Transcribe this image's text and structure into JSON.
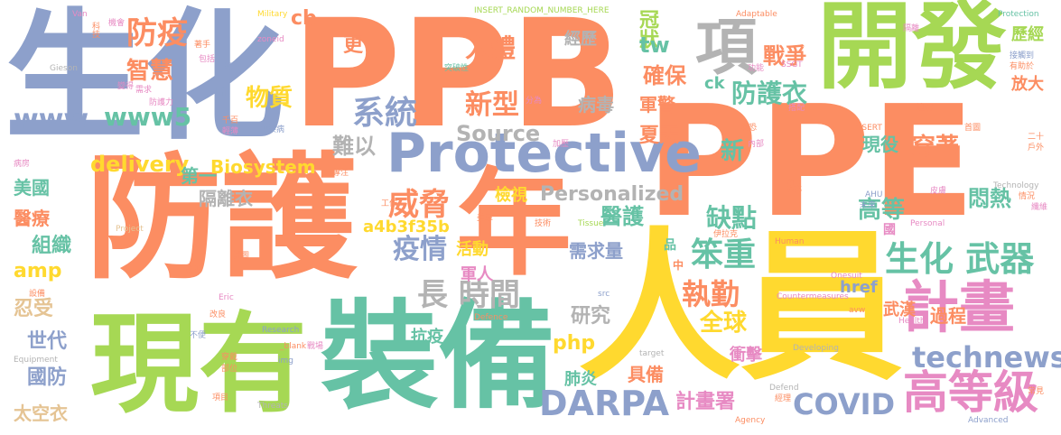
{
  "cloud": {
    "colors": {
      "salmon": "#fc8d62",
      "blue": "#8da0cb",
      "green": "#a6d854",
      "yellow": "#ffd92f",
      "teal": "#66c2a5",
      "pink": "#e78ac3",
      "tan": "#e5c494",
      "gray": "#b3b3b3"
    },
    "words": [
      {
        "text": "PPE",
        "color": "salmon"
      },
      {
        "text": "PPB",
        "color": "salmon"
      },
      {
        "text": "防護",
        "color": "salmon"
      },
      {
        "text": "人員",
        "color": "yellow"
      },
      {
        "text": "生化",
        "color": "blue"
      },
      {
        "text": "年",
        "color": "salmon"
      },
      {
        "text": "裝備",
        "color": "teal"
      },
      {
        "text": "現有",
        "color": "green"
      },
      {
        "text": "開發",
        "color": "green"
      },
      {
        "text": "Protective",
        "color": "blue"
      },
      {
        "text": "計畫",
        "color": "pink"
      },
      {
        "text": "高等級",
        "color": "pink"
      },
      {
        "text": "項",
        "color": "gray"
      },
      {
        "text": "生化 武器",
        "color": "teal"
      },
      {
        "text": "長 時間",
        "color": "gray"
      },
      {
        "text": "系統",
        "color": "blue"
      },
      {
        "text": "防疫",
        "color": "salmon"
      },
      {
        "text": "www5",
        "color": "teal"
      },
      {
        "text": "www",
        "color": "blue"
      },
      {
        "text": "DARPA",
        "color": "blue"
      },
      {
        "text": "technews",
        "color": "blue"
      },
      {
        "text": "COVID",
        "color": "blue"
      },
      {
        "text": "防護衣",
        "color": "teal"
      },
      {
        "text": "笨重",
        "color": "teal"
      },
      {
        "text": "執勤",
        "color": "salmon"
      },
      {
        "text": "全球",
        "color": "yellow"
      },
      {
        "text": "威脅",
        "color": "salmon"
      },
      {
        "text": "疫情",
        "color": "blue"
      },
      {
        "text": "新型",
        "color": "salmon"
      },
      {
        "text": "人體",
        "color": "salmon"
      },
      {
        "text": "病毒",
        "color": "gray"
      },
      {
        "text": "Source",
        "color": "gray"
      },
      {
        "text": "Personalized",
        "color": "gray"
      },
      {
        "text": "delivery",
        "color": "yellow"
      },
      {
        "text": "Biosystem",
        "color": "yellow"
      },
      {
        "text": "智慧",
        "color": "salmon"
      },
      {
        "text": "物質",
        "color": "yellow"
      },
      {
        "text": "戰爭",
        "color": "salmon"
      },
      {
        "text": "確保",
        "color": "salmon"
      },
      {
        "text": "冠狀",
        "color": "green"
      },
      {
        "text": "經歷",
        "color": "gray"
      },
      {
        "text": "歷經",
        "color": "green"
      },
      {
        "text": "醫護",
        "color": "teal"
      },
      {
        "text": "缺點",
        "color": "teal"
      },
      {
        "text": "高等",
        "color": "teal"
      },
      {
        "text": "穿著",
        "color": "salmon"
      },
      {
        "text": "悶熱",
        "color": "teal"
      },
      {
        "text": "現役",
        "color": "teal"
      },
      {
        "text": "夏天",
        "color": "salmon"
      },
      {
        "text": "軍警",
        "color": "salmon"
      },
      {
        "text": "難以",
        "color": "gray"
      },
      {
        "text": "第一",
        "color": "teal"
      },
      {
        "text": "隔離衣",
        "color": "gray"
      },
      {
        "text": "美國",
        "color": "teal"
      },
      {
        "text": "醫療",
        "color": "salmon"
      },
      {
        "text": "組織",
        "color": "teal"
      },
      {
        "text": "amp",
        "color": "yellow"
      },
      {
        "text": "忍受",
        "color": "tan"
      },
      {
        "text": "世代",
        "color": "blue"
      },
      {
        "text": "國防",
        "color": "blue"
      },
      {
        "text": "太空衣",
        "color": "tan"
      },
      {
        "text": "a4b3f35b",
        "color": "yellow"
      },
      {
        "text": "活動",
        "color": "yellow"
      },
      {
        "text": "需求量",
        "color": "blue"
      },
      {
        "text": "軍人",
        "color": "pink"
      },
      {
        "text": "抗疫",
        "color": "teal"
      },
      {
        "text": "研究",
        "color": "gray"
      },
      {
        "text": "php",
        "color": "yellow"
      },
      {
        "text": "肺炎",
        "color": "teal"
      },
      {
        "text": "具備",
        "color": "salmon"
      },
      {
        "text": "計畫署",
        "color": "pink"
      },
      {
        "text": "tw",
        "color": "teal"
      },
      {
        "text": "cb",
        "color": "salmon"
      },
      {
        "text": "更",
        "color": "salmon"
      },
      {
        "text": "ck",
        "color": "teal"
      },
      {
        "text": "n",
        "color": "blue"
      },
      {
        "text": "新",
        "color": "teal"
      },
      {
        "text": "href",
        "color": "blue"
      },
      {
        "text": "過程",
        "color": "salmon"
      },
      {
        "text": "武漢",
        "color": "salmon"
      },
      {
        "text": "衝擊",
        "color": "pink"
      },
      {
        "text": "放大",
        "color": "salmon"
      },
      {
        "text": "檢視",
        "color": "yellow"
      },
      {
        "text": "INSERT_RANDOM_NUMBER_HERE",
        "color": "green"
      },
      {
        "text": "Military",
        "color": "yellow"
      },
      {
        "text": "Protection",
        "color": "teal"
      },
      {
        "text": "Adaptable",
        "color": "salmon"
      },
      {
        "text": "Gieson",
        "color": "gray"
      },
      {
        "text": "zoneid",
        "color": "pink"
      },
      {
        "text": "Van",
        "color": "pink"
      },
      {
        "text": "科技",
        "color": "salmon"
      },
      {
        "text": "機會",
        "color": "pink"
      },
      {
        "text": "著手",
        "color": "salmon"
      },
      {
        "text": "包括",
        "color": "pink"
      },
      {
        "text": "突破性",
        "color": "teal"
      },
      {
        "text": "隔離",
        "color": "pink"
      },
      {
        "text": "接觸到",
        "color": "blue"
      },
      {
        "text": "有助於",
        "color": "salmon"
      },
      {
        "text": "SSGT",
        "color": "pink"
      },
      {
        "text": "功能",
        "color": "pink"
      },
      {
        "text": "需求",
        "color": "pink"
      },
      {
        "text": "變得",
        "color": "pink"
      },
      {
        "text": "防護力",
        "color": "pink"
      },
      {
        "text": "氣管",
        "color": "blue"
      },
      {
        "text": "千百",
        "color": "salmon"
      },
      {
        "text": "輕薄",
        "color": "pink"
      },
      {
        "text": "傳染病",
        "color": "blue"
      },
      {
        "text": "分為",
        "color": "pink"
      },
      {
        "text": "搭配",
        "color": "pink"
      },
      {
        "text": "迫切",
        "color": "salmon"
      },
      {
        "text": "二十",
        "color": "salmon"
      },
      {
        "text": "戶外",
        "color": "salmon"
      },
      {
        "text": "首圖",
        "color": "salmon"
      },
      {
        "text": "INSERT",
        "color": "salmon"
      },
      {
        "text": "反恐",
        "color": "salmon"
      },
      {
        "text": "內部",
        "color": "pink"
      },
      {
        "text": "病房",
        "color": "pink"
      },
      {
        "text": "加壓",
        "color": "pink"
      },
      {
        "text": "專注",
        "color": "salmon"
      },
      {
        "text": "工作",
        "color": "salmon"
      },
      {
        "text": "美軍",
        "color": "salmon"
      },
      {
        "text": "技術",
        "color": "salmon"
      },
      {
        "text": "Tissue",
        "color": "green"
      },
      {
        "text": "Technology",
        "color": "gray"
      },
      {
        "text": "情況",
        "color": "salmon"
      },
      {
        "text": "纖維",
        "color": "pink"
      },
      {
        "text": "Personal",
        "color": "pink"
      },
      {
        "text": "AHU",
        "color": "blue"
      },
      {
        "text": "未來",
        "color": "blue"
      },
      {
        "text": "皮膚",
        "color": "pink"
      },
      {
        "text": "伊拉克",
        "color": "salmon"
      },
      {
        "text": "Human",
        "color": "salmon"
      },
      {
        "text": "Project",
        "color": "tan"
      },
      {
        "text": "線",
        "color": "salmon"
      },
      {
        "text": "國",
        "color": "pink"
      },
      {
        "text": "改善",
        "color": "salmon"
      },
      {
        "text": "試圖",
        "color": "salmon"
      },
      {
        "text": "設備",
        "color": "salmon"
      },
      {
        "text": "Eric",
        "color": "pink"
      },
      {
        "text": "Countermeasures",
        "color": "pink"
      },
      {
        "text": "Onesuit",
        "color": "pink"
      },
      {
        "text": "Health",
        "color": "pink"
      },
      {
        "text": "avw",
        "color": "salmon"
      },
      {
        "text": "Developing",
        "color": "gray"
      },
      {
        "text": "Research",
        "color": "blue"
      },
      {
        "text": "Equipment",
        "color": "gray"
      },
      {
        "text": "Defence",
        "color": "salmon"
      },
      {
        "text": "_blank",
        "color": "salmon"
      },
      {
        "text": "img",
        "color": "blue"
      },
      {
        "text": "target",
        "color": "gray"
      },
      {
        "text": "Threats",
        "color": "gray"
      },
      {
        "text": "Defend",
        "color": "gray"
      },
      {
        "text": "Agency",
        "color": "salmon"
      },
      {
        "text": "Advanced",
        "color": "blue"
      },
      {
        "text": "src",
        "color": "blue"
      },
      {
        "text": "改良",
        "color": "salmon"
      },
      {
        "text": "不便",
        "color": "blue"
      },
      {
        "text": "部位",
        "color": "salmon"
      },
      {
        "text": "項目",
        "color": "salmon"
      },
      {
        "text": "穿戴",
        "color": "salmon"
      },
      {
        "text": "戰場",
        "color": "pink"
      },
      {
        "text": "經理",
        "color": "salmon"
      },
      {
        "text": "常見",
        "color": "salmon"
      },
      {
        "text": "品",
        "color": "teal"
      },
      {
        "text": "中",
        "color": "salmon"
      }
    ]
  }
}
